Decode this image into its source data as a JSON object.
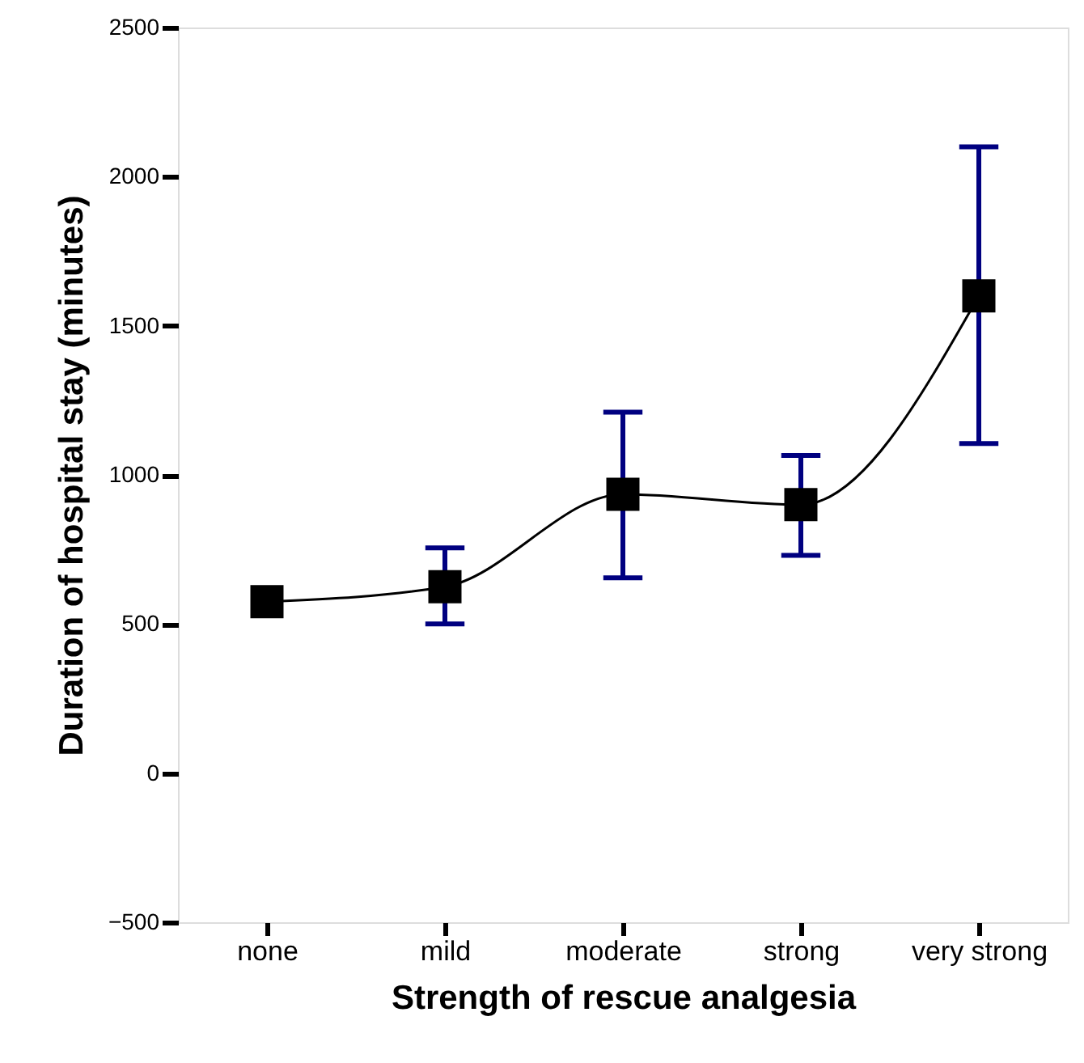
{
  "chart_data": {
    "type": "line",
    "xlabel": "Strength of rescue analgesia",
    "ylabel": "Duration of hospital stay (minutes)",
    "categories": [
      "none",
      "mild",
      "moderate",
      "strong",
      "very strong"
    ],
    "series": [
      {
        "color": "#000000",
        "values": [
          575,
          625,
          935,
          900,
          1600
        ],
        "errors": [
          null,
          [
            500,
            755
          ],
          [
            655,
            1210
          ],
          [
            730,
            1065
          ],
          [
            1105,
            2100
          ]
        ]
      }
    ],
    "ylim": [
      -500,
      2500
    ],
    "yticks": [
      -500,
      0,
      500,
      1000,
      1500,
      2000,
      2500
    ],
    "grid": false,
    "marker": "square",
    "line_style": "solid"
  }
}
